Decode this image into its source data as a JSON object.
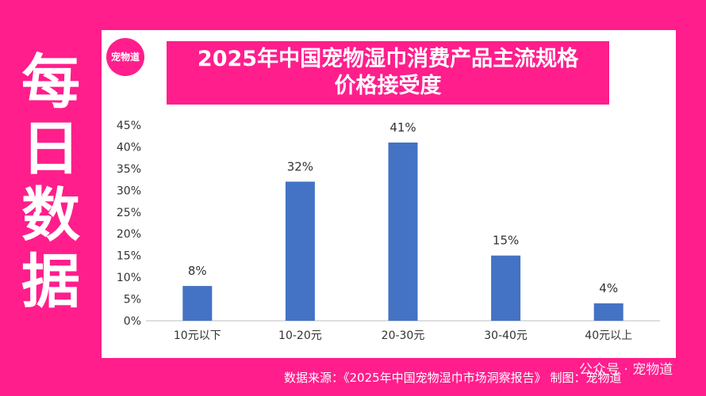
{
  "side_title": [
    "每",
    "日",
    "数",
    "据"
  ],
  "logo_text": "宠物道",
  "title_line1": "2025年中国宠物湿巾消费产品主流规格",
  "title_line2": "价格接受度",
  "source": "数据来源：《2025年中国宠物湿巾市场洞察报告》  制图：宠物道",
  "watermark": "公众号 · 宠物道",
  "colors": {
    "background": "#ff1e8c",
    "bar": "#4472c4"
  },
  "chart_data": {
    "type": "bar",
    "title": "2025年中国宠物湿巾消费产品主流规格价格接受度",
    "categories": [
      "10元以下",
      "10-20元",
      "20-30元",
      "30-40元",
      "40元以上"
    ],
    "values": [
      8,
      32,
      41,
      15,
      4
    ],
    "data_labels": [
      "8%",
      "32%",
      "41%",
      "15%",
      "4%"
    ],
    "ylim": [
      0,
      45
    ],
    "yticks": [
      "0%",
      "5%",
      "10%",
      "15%",
      "20%",
      "25%",
      "30%",
      "35%",
      "40%",
      "45%"
    ],
    "grid": false,
    "legend": "none"
  }
}
